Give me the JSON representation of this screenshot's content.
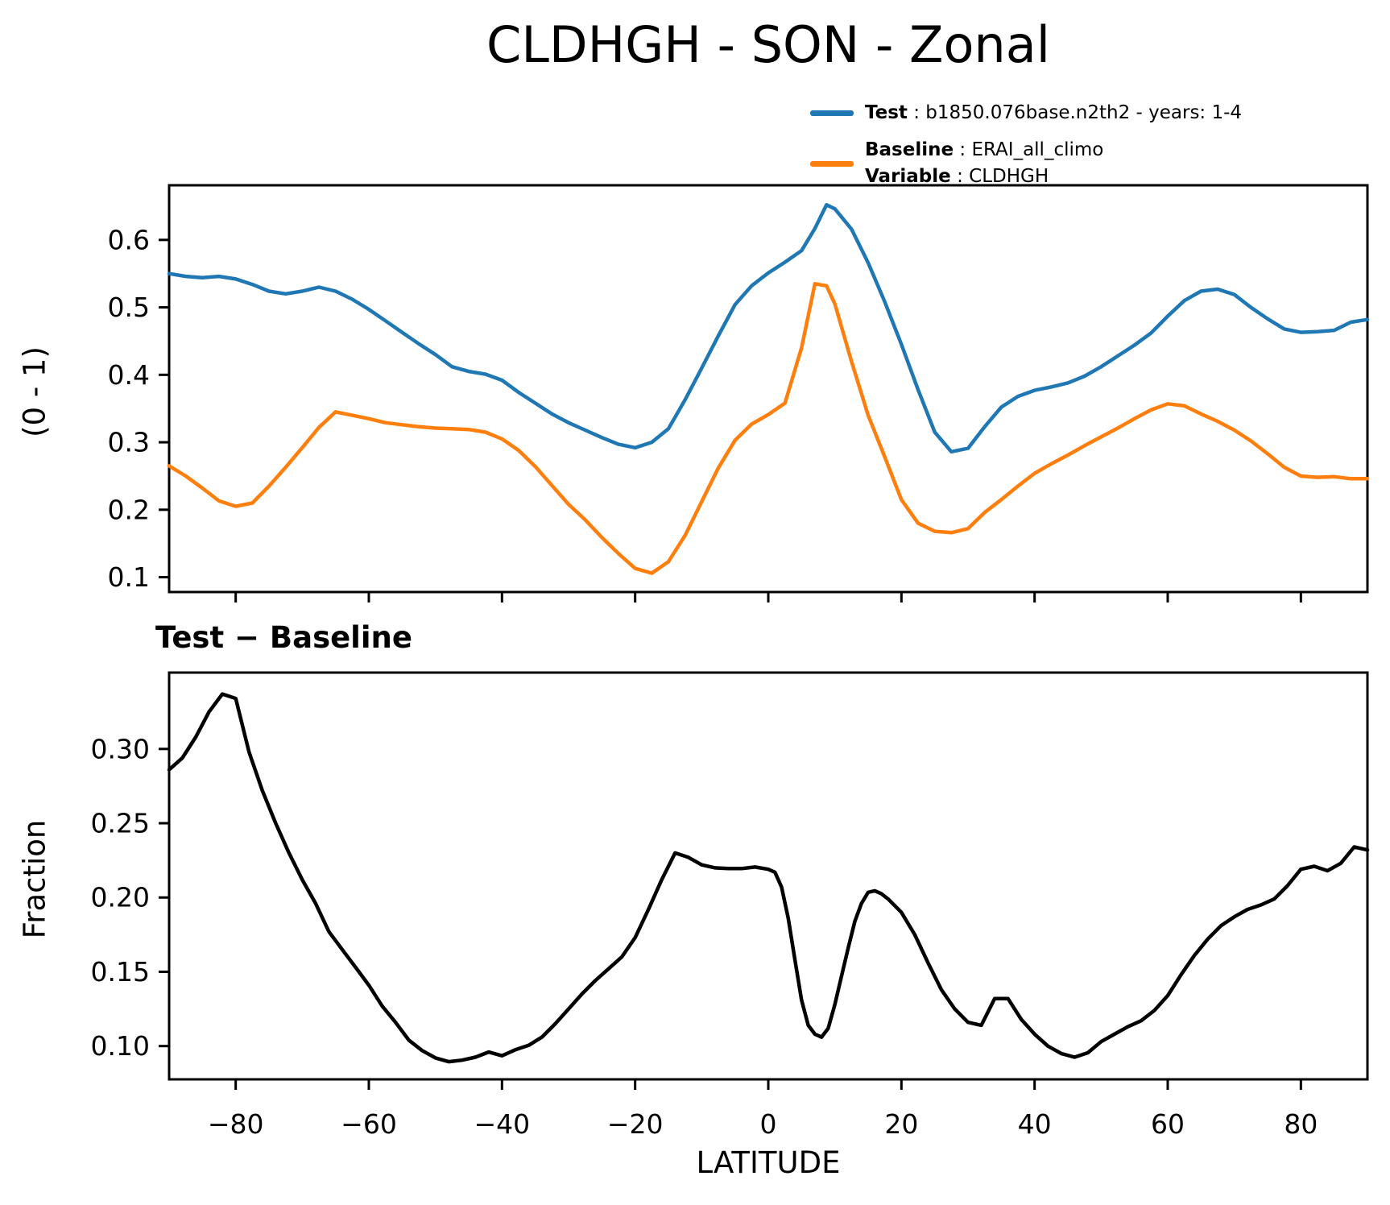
{
  "title": "CLDHGH - SON - Zonal",
  "legend": {
    "sep": " : ",
    "test_key": "Test",
    "test_value": "b1850.076base.n2th2 - years: 1-4",
    "baseline_key": "Baseline",
    "baseline_value": "ERAI_all_climo",
    "variable_key": "Variable",
    "variable_value": "CLDHGH",
    "test_color": "#1f77b4",
    "baseline_color": "#ff7f0e"
  },
  "diff_heading": "Test − Baseline",
  "colors": {
    "test": "#1f77b4",
    "baseline": "#ff7f0e",
    "diff": "#000000",
    "axis": "#000000",
    "background": "#ffffff"
  },
  "chart_data": [
    {
      "type": "line",
      "panel": "top",
      "ylabel": "(0 - 1)",
      "xlabel": "",
      "xlim": [
        -90,
        90
      ],
      "ylim": [
        0.078,
        0.681
      ],
      "xticks": [
        -80,
        -60,
        -40,
        -20,
        0,
        20,
        40,
        60,
        80
      ],
      "xtick_labels_visible": false,
      "yticks": [
        0.1,
        0.2,
        0.3,
        0.4,
        0.5,
        0.6
      ],
      "ytick_decimals": 1,
      "grid": false,
      "legend_position": "above-right",
      "series": [
        {
          "name": "Test",
          "color": "#1f77b4",
          "x": [
            -90,
            -87.5,
            -85,
            -82.5,
            -80,
            -77.5,
            -75,
            -72.5,
            -70,
            -67.5,
            -65,
            -62.5,
            -60,
            -57.5,
            -55,
            -52.5,
            -50,
            -47.5,
            -45,
            -42.5,
            -40,
            -37.5,
            -35,
            -32.5,
            -30,
            -27.5,
            -25,
            -22.5,
            -20,
            -17.5,
            -15,
            -12.5,
            -10,
            -7.5,
            -5,
            -2.5,
            0,
            2.5,
            5,
            7,
            8.75,
            10,
            12.5,
            15,
            17.5,
            20,
            22.5,
            25,
            27.5,
            30,
            32.5,
            35,
            37.5,
            40,
            42.5,
            45,
            47.5,
            50,
            52.5,
            55,
            57.5,
            60,
            62.5,
            65,
            67.5,
            70,
            72.5,
            75,
            77.5,
            80,
            82.5,
            85,
            87.5,
            90
          ],
          "y": [
            0.55,
            0.546,
            0.544,
            0.546,
            0.542,
            0.534,
            0.524,
            0.52,
            0.524,
            0.53,
            0.524,
            0.512,
            0.497,
            0.48,
            0.463,
            0.446,
            0.43,
            0.412,
            0.405,
            0.401,
            0.392,
            0.374,
            0.358,
            0.342,
            0.329,
            0.318,
            0.307,
            0.297,
            0.292,
            0.3,
            0.32,
            0.363,
            0.41,
            0.458,
            0.504,
            0.532,
            0.551,
            0.567,
            0.584,
            0.617,
            0.652,
            0.646,
            0.616,
            0.566,
            0.508,
            0.445,
            0.378,
            0.315,
            0.286,
            0.291,
            0.323,
            0.352,
            0.368,
            0.377,
            0.382,
            0.388,
            0.398,
            0.412,
            0.428,
            0.444,
            0.462,
            0.487,
            0.51,
            0.524,
            0.527,
            0.519,
            0.5,
            0.483,
            0.468,
            0.463,
            0.464,
            0.466,
            0.478,
            0.482
          ]
        },
        {
          "name": "Baseline",
          "color": "#ff7f0e",
          "x": [
            -90,
            -87.5,
            -85,
            -82.5,
            -80,
            -77.5,
            -75,
            -72.5,
            -70,
            -67.5,
            -65,
            -62.5,
            -60,
            -57.5,
            -55,
            -52.5,
            -50,
            -47.5,
            -45,
            -42.5,
            -40,
            -37.5,
            -35,
            -32.5,
            -30,
            -27.5,
            -25,
            -22.5,
            -20,
            -17.5,
            -15,
            -12.5,
            -10,
            -7.5,
            -5,
            -2.5,
            0,
            2.5,
            5,
            7,
            8.75,
            10,
            12.5,
            15,
            17.5,
            20,
            22.5,
            25,
            27.5,
            30,
            32.5,
            35,
            37.5,
            40,
            42.5,
            45,
            47.5,
            50,
            52.5,
            55,
            57.5,
            60,
            62.5,
            65,
            67.5,
            70,
            72.5,
            75,
            77.5,
            80,
            82.5,
            85,
            87.5,
            90
          ],
          "y": [
            0.265,
            0.25,
            0.232,
            0.213,
            0.205,
            0.21,
            0.235,
            0.263,
            0.292,
            0.322,
            0.345,
            0.34,
            0.335,
            0.329,
            0.326,
            0.323,
            0.321,
            0.32,
            0.319,
            0.315,
            0.305,
            0.288,
            0.264,
            0.236,
            0.208,
            0.185,
            0.159,
            0.135,
            0.113,
            0.106,
            0.123,
            0.162,
            0.212,
            0.262,
            0.303,
            0.327,
            0.341,
            0.358,
            0.44,
            0.535,
            0.532,
            0.505,
            0.42,
            0.34,
            0.278,
            0.215,
            0.18,
            0.168,
            0.166,
            0.172,
            0.196,
            0.215,
            0.235,
            0.254,
            0.268,
            0.281,
            0.295,
            0.308,
            0.321,
            0.335,
            0.348,
            0.357,
            0.354,
            0.342,
            0.331,
            0.318,
            0.302,
            0.283,
            0.263,
            0.25,
            0.248,
            0.249,
            0.246,
            0.246
          ]
        }
      ]
    },
    {
      "type": "line",
      "panel": "bottom",
      "title": "Test − Baseline",
      "ylabel": "Fraction",
      "xlabel": "LATITUDE",
      "xlim": [
        -90,
        90
      ],
      "ylim": [
        0.0776,
        0.3514
      ],
      "xticks": [
        -80,
        -60,
        -40,
        -20,
        0,
        20,
        40,
        60,
        80
      ],
      "xtick_labels_visible": true,
      "yticks": [
        0.1,
        0.15,
        0.2,
        0.25,
        0.3
      ],
      "ytick_decimals": 2,
      "grid": false,
      "series": [
        {
          "name": "Test − Baseline",
          "color": "#000000",
          "x": [
            -90,
            -88,
            -86,
            -84,
            -82,
            -80,
            -78,
            -76,
            -74,
            -72,
            -70,
            -68,
            -66,
            -64,
            -62,
            -60,
            -58,
            -56,
            -54,
            -52,
            -50,
            -48,
            -46,
            -44,
            -42,
            -40,
            -38,
            -36,
            -34,
            -32,
            -30,
            -28,
            -26,
            -24,
            -22,
            -20,
            -18,
            -16,
            -14,
            -12,
            -10,
            -8,
            -6,
            -4,
            -2,
            0,
            1,
            2,
            3,
            4,
            5,
            6,
            7,
            8,
            9,
            10,
            11,
            12,
            13,
            14,
            15,
            16,
            17,
            18,
            20,
            22,
            24,
            26,
            28,
            30,
            32,
            34,
            36,
            38,
            40,
            42,
            44,
            46,
            48,
            50,
            52,
            54,
            56,
            58,
            60,
            62,
            64,
            66,
            68,
            70,
            72,
            74,
            76,
            78,
            80,
            82,
            84,
            86,
            88,
            90
          ],
          "y": [
            0.286,
            0.294,
            0.308,
            0.325,
            0.337,
            0.334,
            0.298,
            0.272,
            0.25,
            0.23,
            0.212,
            0.196,
            0.177,
            0.165,
            0.153,
            0.141,
            0.127,
            0.116,
            0.104,
            0.097,
            0.092,
            0.0895,
            0.0905,
            0.0925,
            0.096,
            0.0935,
            0.0975,
            0.1005,
            0.106,
            0.115,
            0.125,
            0.135,
            0.144,
            0.152,
            0.16,
            0.173,
            0.192,
            0.212,
            0.23,
            0.227,
            0.222,
            0.22,
            0.2195,
            0.2195,
            0.2205,
            0.219,
            0.217,
            0.207,
            0.186,
            0.158,
            0.131,
            0.114,
            0.108,
            0.106,
            0.112,
            0.128,
            0.147,
            0.166,
            0.184,
            0.196,
            0.2035,
            0.2045,
            0.2025,
            0.199,
            0.19,
            0.175,
            0.156,
            0.138,
            0.125,
            0.116,
            0.114,
            0.132,
            0.132,
            0.118,
            0.108,
            0.1,
            0.095,
            0.0925,
            0.0955,
            0.103,
            0.108,
            0.113,
            0.117,
            0.124,
            0.134,
            0.148,
            0.161,
            0.172,
            0.181,
            0.187,
            0.192,
            0.195,
            0.199,
            0.208,
            0.219,
            0.221,
            0.218,
            0.223,
            0.234,
            0.232
          ]
        }
      ]
    }
  ]
}
